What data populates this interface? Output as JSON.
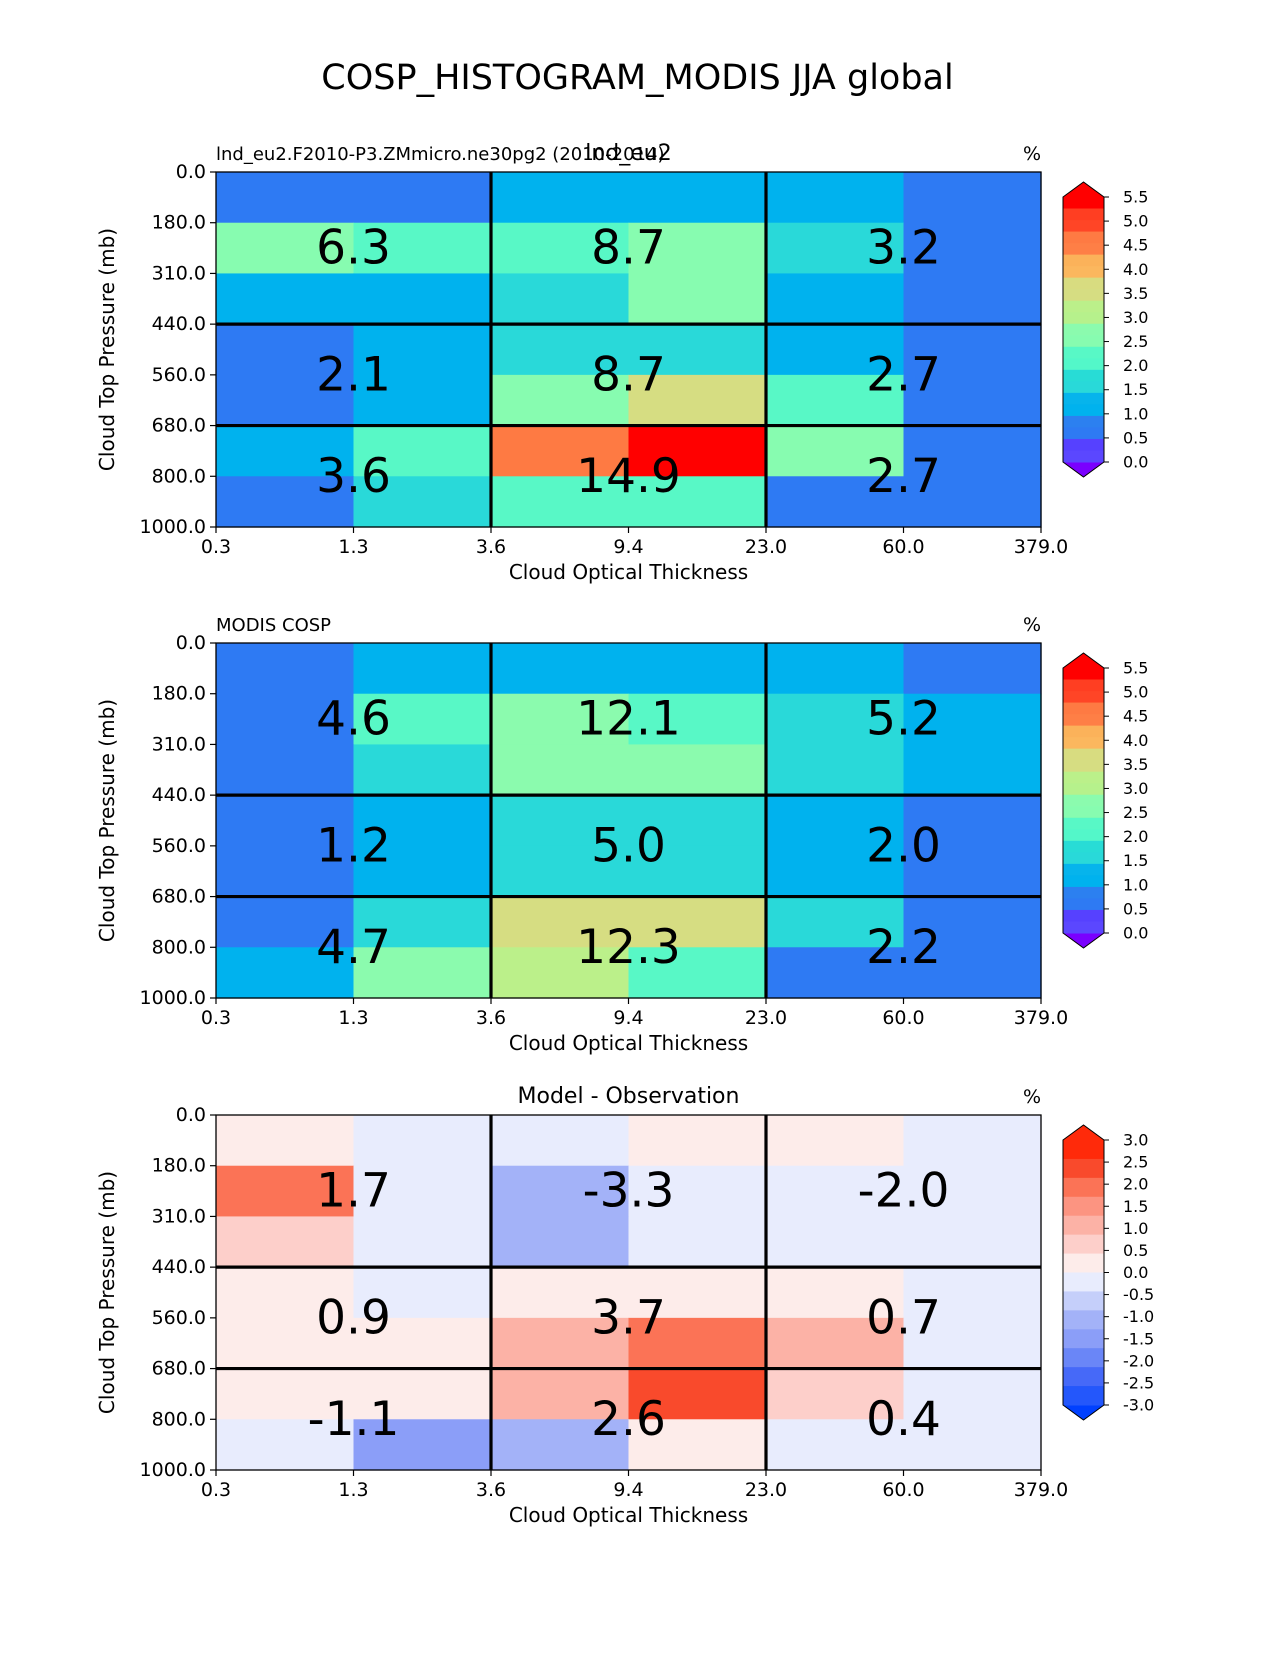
{
  "figure": {
    "title": "COSP_HISTOGRAM_MODIS JJA global"
  },
  "chart_data": [
    {
      "type": "heatmap",
      "title_left": "lnd_eu2.F2010-P3.ZMmicro.ne30pg2 (2010-2014)",
      "title_center": "lnd_eu2",
      "units": "%",
      "xlabel": "Cloud Optical Thickness",
      "ylabel": "Cloud Top Pressure (mb)",
      "x_ticks": [
        "0.3",
        "1.3",
        "3.6",
        "9.4",
        "23.0",
        "60.0",
        "379.0"
      ],
      "y_ticks": [
        "0.0",
        "180.0",
        "310.0",
        "440.0",
        "560.0",
        "680.0",
        "800.0",
        "1000.0"
      ],
      "values": [
        [
          0.4,
          0.4,
          0.9,
          0.9,
          0.9,
          0.4
        ],
        [
          2.3,
          2.0,
          2.0,
          2.3,
          1.4,
          0.4
        ],
        [
          0.9,
          0.9,
          1.4,
          2.3,
          0.9,
          0.4
        ],
        [
          0.4,
          0.9,
          1.4,
          1.4,
          0.9,
          0.4
        ],
        [
          0.4,
          0.9,
          2.3,
          3.4,
          2.0,
          0.4
        ],
        [
          0.9,
          2.0,
          4.7,
          5.8,
          2.3,
          0.4
        ],
        [
          0.4,
          1.4,
          2.0,
          2.0,
          0.4,
          0.4
        ]
      ],
      "group_sums": [
        [
          "6.3",
          "8.7",
          "3.2"
        ],
        [
          "2.1",
          "8.7",
          "2.7"
        ],
        [
          "3.6",
          "14.9",
          "2.7"
        ]
      ],
      "colorbar": {
        "kind": "rainbow",
        "levels": [
          -0.25,
          0,
          0.25,
          0.5,
          0.75,
          1.0,
          1.25,
          1.5,
          1.75,
          2.0,
          2.25,
          2.5,
          2.75,
          3.0,
          3.25,
          3.5,
          3.75,
          4.0,
          4.25,
          4.5,
          4.75,
          5.0,
          5.25,
          5.5,
          5.75
        ],
        "tick_labels": [
          "5.5",
          "5.0",
          "4.5",
          "4.0",
          "3.5",
          "3.0",
          "2.5",
          "2.0",
          "1.5",
          "1.0",
          "0.5",
          "0.0"
        ],
        "colors": [
          "#7a00ff",
          "#5b47ff",
          "#5641ff",
          "#2e7af3",
          "#2c80f0",
          "#00b2ee",
          "#06b4ec",
          "#29d9d9",
          "#28dcd6",
          "#53f7c9",
          "#58f8c6",
          "#87fcb0",
          "#8bfbae",
          "#b6f18c",
          "#bbf08a",
          "#d6dd82",
          "#d8dc80",
          "#fbb75e",
          "#fbb25a",
          "#fe7f46",
          "#fe7a43",
          "#ff4526",
          "#ff3e22",
          "#ff0000",
          "#ff0000"
        ]
      }
    },
    {
      "type": "heatmap",
      "title_left": "MODIS COSP",
      "units": "%",
      "xlabel": "Cloud Optical Thickness",
      "ylabel": "Cloud Top Pressure (mb)",
      "x_ticks": [
        "0.3",
        "1.3",
        "3.6",
        "9.4",
        "23.0",
        "60.0",
        "379.0"
      ],
      "y_ticks": [
        "0.0",
        "180.0",
        "310.0",
        "440.0",
        "560.0",
        "680.0",
        "800.0",
        "1000.0"
      ],
      "values": [
        [
          0.4,
          0.9,
          0.9,
          0.9,
          0.9,
          0.4
        ],
        [
          0.4,
          2.0,
          2.7,
          2.0,
          1.4,
          0.9
        ],
        [
          0.4,
          1.4,
          2.7,
          2.7,
          1.4,
          0.9
        ],
        [
          0.4,
          0.9,
          1.4,
          1.4,
          0.9,
          0.4
        ],
        [
          0.4,
          0.9,
          1.4,
          1.4,
          0.9,
          0.4
        ],
        [
          0.4,
          1.4,
          3.4,
          3.4,
          1.4,
          0.4
        ],
        [
          0.9,
          2.7,
          3.0,
          2.0,
          0.4,
          0.4
        ]
      ],
      "group_sums": [
        [
          "4.6",
          "12.1",
          "5.2"
        ],
        [
          "1.2",
          "5.0",
          "2.0"
        ],
        [
          "4.7",
          "12.3",
          "2.2"
        ]
      ],
      "colorbar": {
        "kind": "rainbow",
        "levels": [
          -0.25,
          0,
          0.25,
          0.5,
          0.75,
          1.0,
          1.25,
          1.5,
          1.75,
          2.0,
          2.25,
          2.5,
          2.75,
          3.0,
          3.25,
          3.5,
          3.75,
          4.0,
          4.25,
          4.5,
          4.75,
          5.0,
          5.25,
          5.5,
          5.75
        ],
        "tick_labels": [
          "5.5",
          "5.0",
          "4.5",
          "4.0",
          "3.5",
          "3.0",
          "2.5",
          "2.0",
          "1.5",
          "1.0",
          "0.5",
          "0.0"
        ],
        "colors": [
          "#7a00ff",
          "#5b47ff",
          "#5641ff",
          "#2e7af3",
          "#2c80f0",
          "#00b2ee",
          "#06b4ec",
          "#29d9d9",
          "#28dcd6",
          "#53f7c9",
          "#58f8c6",
          "#87fcb0",
          "#8bfbae",
          "#b6f18c",
          "#bbf08a",
          "#d6dd82",
          "#d8dc80",
          "#fbb75e",
          "#fbb25a",
          "#fe7f46",
          "#fe7a43",
          "#ff4526",
          "#ff3e22",
          "#ff0000",
          "#ff0000"
        ]
      }
    },
    {
      "type": "heatmap",
      "title_center": "Model - Observation",
      "units": "%",
      "xlabel": "Cloud Optical Thickness",
      "ylabel": "Cloud Top Pressure (mb)",
      "x_ticks": [
        "0.3",
        "1.3",
        "3.6",
        "9.4",
        "23.0",
        "60.0",
        "379.0"
      ],
      "y_ticks": [
        "0.0",
        "180.0",
        "310.0",
        "440.0",
        "560.0",
        "680.0",
        "800.0",
        "1000.0"
      ],
      "values": [
        [
          0.1,
          -0.1,
          -0.1,
          0.1,
          0.1,
          -0.1
        ],
        [
          2.2,
          -0.1,
          -1.3,
          -0.1,
          -0.1,
          -0.1
        ],
        [
          0.7,
          -0.4,
          -1.3,
          -0.4,
          -0.1,
          -0.4
        ],
        [
          0.1,
          -0.1,
          0.1,
          0.1,
          0.1,
          -0.1
        ],
        [
          0.1,
          0.1,
          1.2,
          2.2,
          1.2,
          -0.1
        ],
        [
          0.1,
          0.1,
          1.2,
          2.7,
          0.7,
          -0.1
        ],
        [
          -0.1,
          -1.8,
          -1.3,
          0.1,
          -0.1,
          -0.1
        ]
      ],
      "group_sums": [
        [
          "1.7",
          "-3.3",
          "-2.0"
        ],
        [
          "0.9",
          "3.7",
          "0.7"
        ],
        [
          "-1.1",
          "2.6",
          "0.4"
        ]
      ],
      "colorbar": {
        "kind": "diverging",
        "levels": [
          -3.5,
          -3.0,
          -2.5,
          -2.0,
          -1.5,
          -1.0,
          -0.5,
          0.0,
          0.5,
          1.0,
          1.5,
          2.0,
          2.5,
          3.0,
          3.5
        ],
        "tick_labels": [
          "3.0",
          "2.5",
          "2.0",
          "1.5",
          "1.0",
          "0.5",
          "0.0",
          "-0.5",
          "-1.0",
          "-1.5",
          "-2.0",
          "-2.5",
          "-3.0"
        ],
        "colors": [
          "#0040ff",
          "#2457fb",
          "#4669f8",
          "#6a86f7",
          "#8b9ef8",
          "#a3b2f8",
          "#c5cffa",
          "#e8ecfd",
          "#fdecea",
          "#fdcfca",
          "#fcb2a6",
          "#fc9481",
          "#fb7356",
          "#f94a2c",
          "#ff2a0a",
          "#ff2a0a"
        ]
      }
    }
  ]
}
